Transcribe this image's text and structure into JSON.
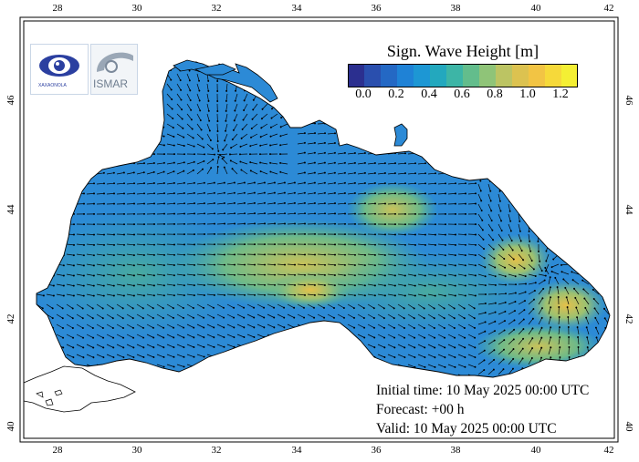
{
  "legend": {
    "title": "Sign. Wave Height [m]",
    "ticks": [
      "0.0",
      "0.2",
      "0.4",
      "0.6",
      "0.8",
      "1.0",
      "1.2"
    ],
    "colors": [
      "#2b2f8f",
      "#2a4fae",
      "#2468c4",
      "#1f82d6",
      "#1d97d4",
      "#23a8be",
      "#3db5a6",
      "#63bd8c",
      "#8fc478",
      "#bcc463",
      "#dcc250",
      "#f2c444",
      "#f6d93a",
      "#f4ef34"
    ]
  },
  "info": {
    "initial": "Initial time: 10 May 2025 00:00 UTC",
    "forecast": "Forecast: +00 h",
    "valid": "Valid: 10 May 2025 00:00 UTC"
  },
  "axes": {
    "lon_ticks": [
      "28",
      "30",
      "32",
      "34",
      "36",
      "38",
      "40",
      "42"
    ],
    "lat_ticks": [
      "40",
      "42",
      "44",
      "46"
    ]
  },
  "logos": {
    "left_text": "XAXAONOLA",
    "right_text": "ISMAR"
  },
  "colors": {
    "sea_base": "#2c8ad6",
    "sea_light": "#3f9fd6",
    "high_wave": "#d9bf55",
    "mid_wave": "#7dbb8a",
    "land_line": "#000000"
  }
}
